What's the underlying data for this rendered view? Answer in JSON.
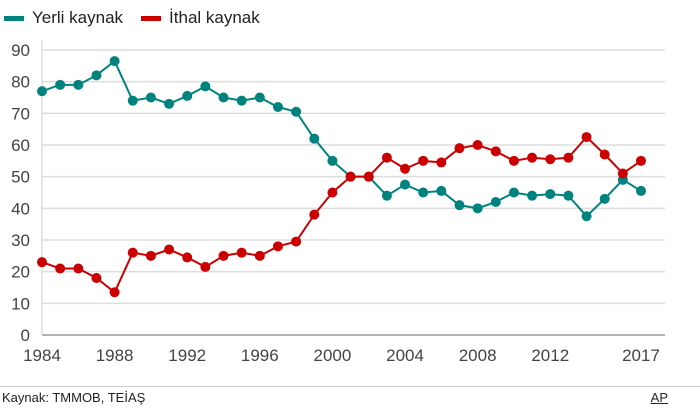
{
  "chart_data": {
    "type": "line",
    "title": "",
    "xlabel": "",
    "ylabel": "",
    "ylim": [
      0,
      90
    ],
    "yticks": [
      0,
      10,
      20,
      30,
      40,
      50,
      60,
      70,
      80,
      90
    ],
    "xticks": [
      1984,
      1988,
      1992,
      1996,
      2000,
      2004,
      2008,
      2012,
      2017
    ],
    "x": [
      1984,
      1985,
      1986,
      1987,
      1988,
      1989,
      1990,
      1991,
      1992,
      1993,
      1994,
      1995,
      1996,
      1997,
      1998,
      1999,
      2000,
      2001,
      2002,
      2003,
      2004,
      2005,
      2006,
      2007,
      2008,
      2009,
      2010,
      2011,
      2012,
      2013,
      2014,
      2015,
      2016,
      2017
    ],
    "series": [
      {
        "name": "Yerli kaynak",
        "color": "#00827f",
        "values": [
          77,
          79,
          79,
          82,
          86.5,
          74,
          75,
          73,
          75.5,
          78.5,
          75,
          74,
          75,
          72,
          70.5,
          62,
          55,
          50,
          50,
          44,
          47.5,
          45,
          45.5,
          41,
          40,
          42,
          45,
          44,
          44.5,
          44,
          37.5,
          43,
          49,
          45.5
        ]
      },
      {
        "name": "İthal kaynak",
        "color": "#cc0000",
        "values": [
          23,
          21,
          21,
          18,
          13.5,
          26,
          25,
          27,
          24.5,
          21.5,
          25,
          26,
          25,
          28,
          29.5,
          38,
          45,
          50,
          50,
          56,
          52.5,
          55,
          54.5,
          59,
          60,
          58,
          55,
          56,
          55.5,
          56,
          62.5,
          57,
          51,
          55
        ]
      }
    ],
    "legend": "top-left",
    "grid": true
  },
  "footer": {
    "source": "Kaynak: TMMOB, TEİAŞ",
    "credit": "AP"
  }
}
